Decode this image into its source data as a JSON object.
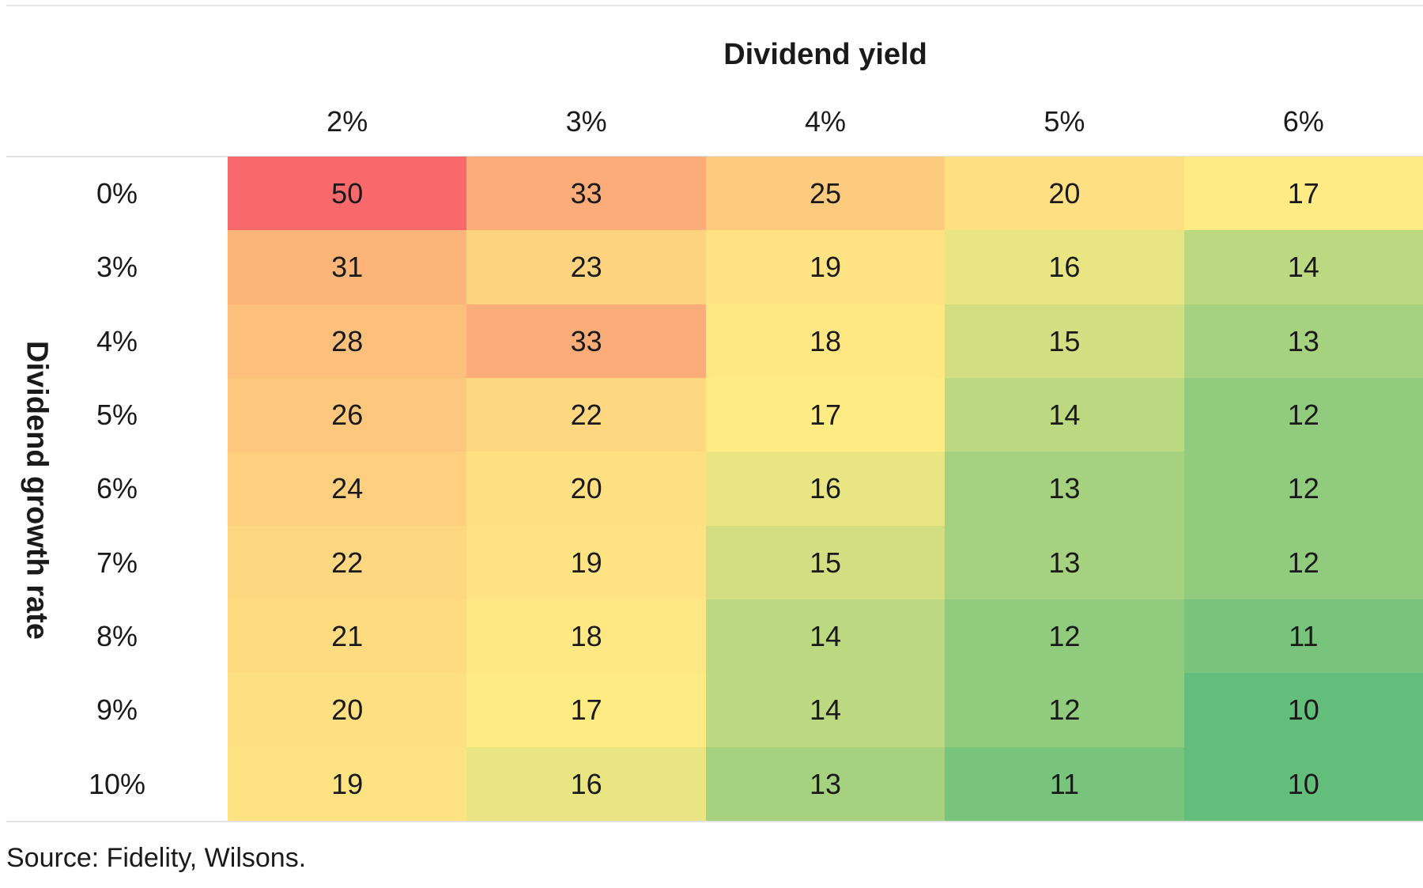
{
  "chart_data": {
    "type": "heatmap",
    "title": "",
    "xlabel": "Dividend yield",
    "ylabel": "Dividend growth rate",
    "x_categories": [
      "2%",
      "3%",
      "4%",
      "5%",
      "6%"
    ],
    "y_categories": [
      "0%",
      "3%",
      "4%",
      "5%",
      "6%",
      "7%",
      "8%",
      "9%",
      "10%"
    ],
    "values": [
      [
        50,
        33,
        25,
        20,
        17
      ],
      [
        31,
        23,
        19,
        16,
        14
      ],
      [
        28,
        33,
        18,
        15,
        13
      ],
      [
        26,
        22,
        17,
        14,
        12
      ],
      [
        24,
        20,
        16,
        13,
        12
      ],
      [
        22,
        19,
        15,
        13,
        12
      ],
      [
        21,
        18,
        14,
        12,
        11
      ],
      [
        20,
        17,
        14,
        12,
        10
      ],
      [
        19,
        16,
        13,
        11,
        10
      ]
    ],
    "color_scale": {
      "low": "#63be7b",
      "mid": "#ffeb84",
      "high": "#f8696b"
    },
    "legend": "none",
    "grid": false
  },
  "source": "Source: Fidelity, Wilsons."
}
